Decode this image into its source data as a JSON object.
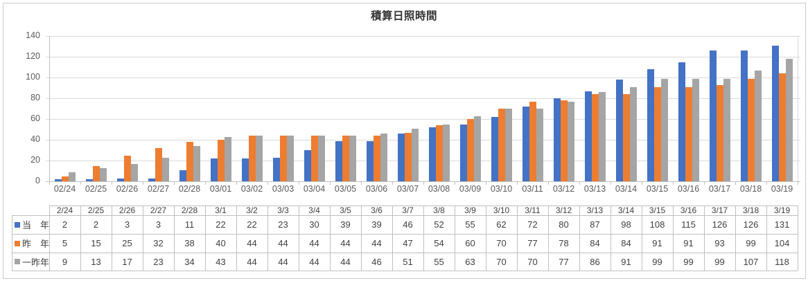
{
  "chart_data": {
    "type": "bar",
    "title": "積算日照時間",
    "categories": [
      "02/24",
      "02/25",
      "02/26",
      "02/27",
      "02/28",
      "03/01",
      "03/02",
      "03/03",
      "03/04",
      "03/05",
      "03/06",
      "03/07",
      "03/08",
      "03/09",
      "03/10",
      "03/11",
      "03/12",
      "03/13",
      "03/14",
      "03/15",
      "03/16",
      "03/17",
      "03/18",
      "03/19"
    ],
    "table_categories": [
      "2/24",
      "2/25",
      "2/26",
      "2/27",
      "2/28",
      "3/1",
      "3/2",
      "3/3",
      "3/4",
      "3/5",
      "3/6",
      "3/7",
      "3/8",
      "3/9",
      "3/10",
      "3/11",
      "3/12",
      "3/13",
      "3/14",
      "3/15",
      "3/16",
      "3/17",
      "3/18",
      "3/19"
    ],
    "series": [
      {
        "name": "当年",
        "color": "#4472C4",
        "values": [
          2,
          2,
          3,
          3,
          11,
          22,
          22,
          23,
          30,
          39,
          39,
          46,
          52,
          55,
          62,
          72,
          80,
          87,
          98,
          108,
          115,
          126,
          126,
          131
        ]
      },
      {
        "name": "昨年",
        "color": "#ED7D31",
        "values": [
          5,
          15,
          25,
          32,
          38,
          40,
          44,
          44,
          44,
          44,
          44,
          47,
          54,
          60,
          70,
          77,
          78,
          84,
          84,
          91,
          91,
          93,
          99,
          104
        ]
      },
      {
        "name": "一昨年",
        "color": "#A5A5A5",
        "values": [
          9,
          13,
          17,
          23,
          34,
          43,
          44,
          44,
          44,
          44,
          46,
          51,
          55,
          63,
          70,
          70,
          77,
          86,
          91,
          99,
          99,
          99,
          107,
          118
        ]
      }
    ],
    "ylim": [
      0,
      140
    ],
    "yticks": [
      0,
      20,
      40,
      60,
      80,
      100,
      120,
      140
    ],
    "grid": true,
    "legend_position": "data-table-left",
    "colors": {
      "gridline": "#D9D9D9",
      "axis": "#BFBFBF",
      "table_border": "#BFBFBF",
      "text": "#404040",
      "axis_text": "#595959"
    }
  }
}
